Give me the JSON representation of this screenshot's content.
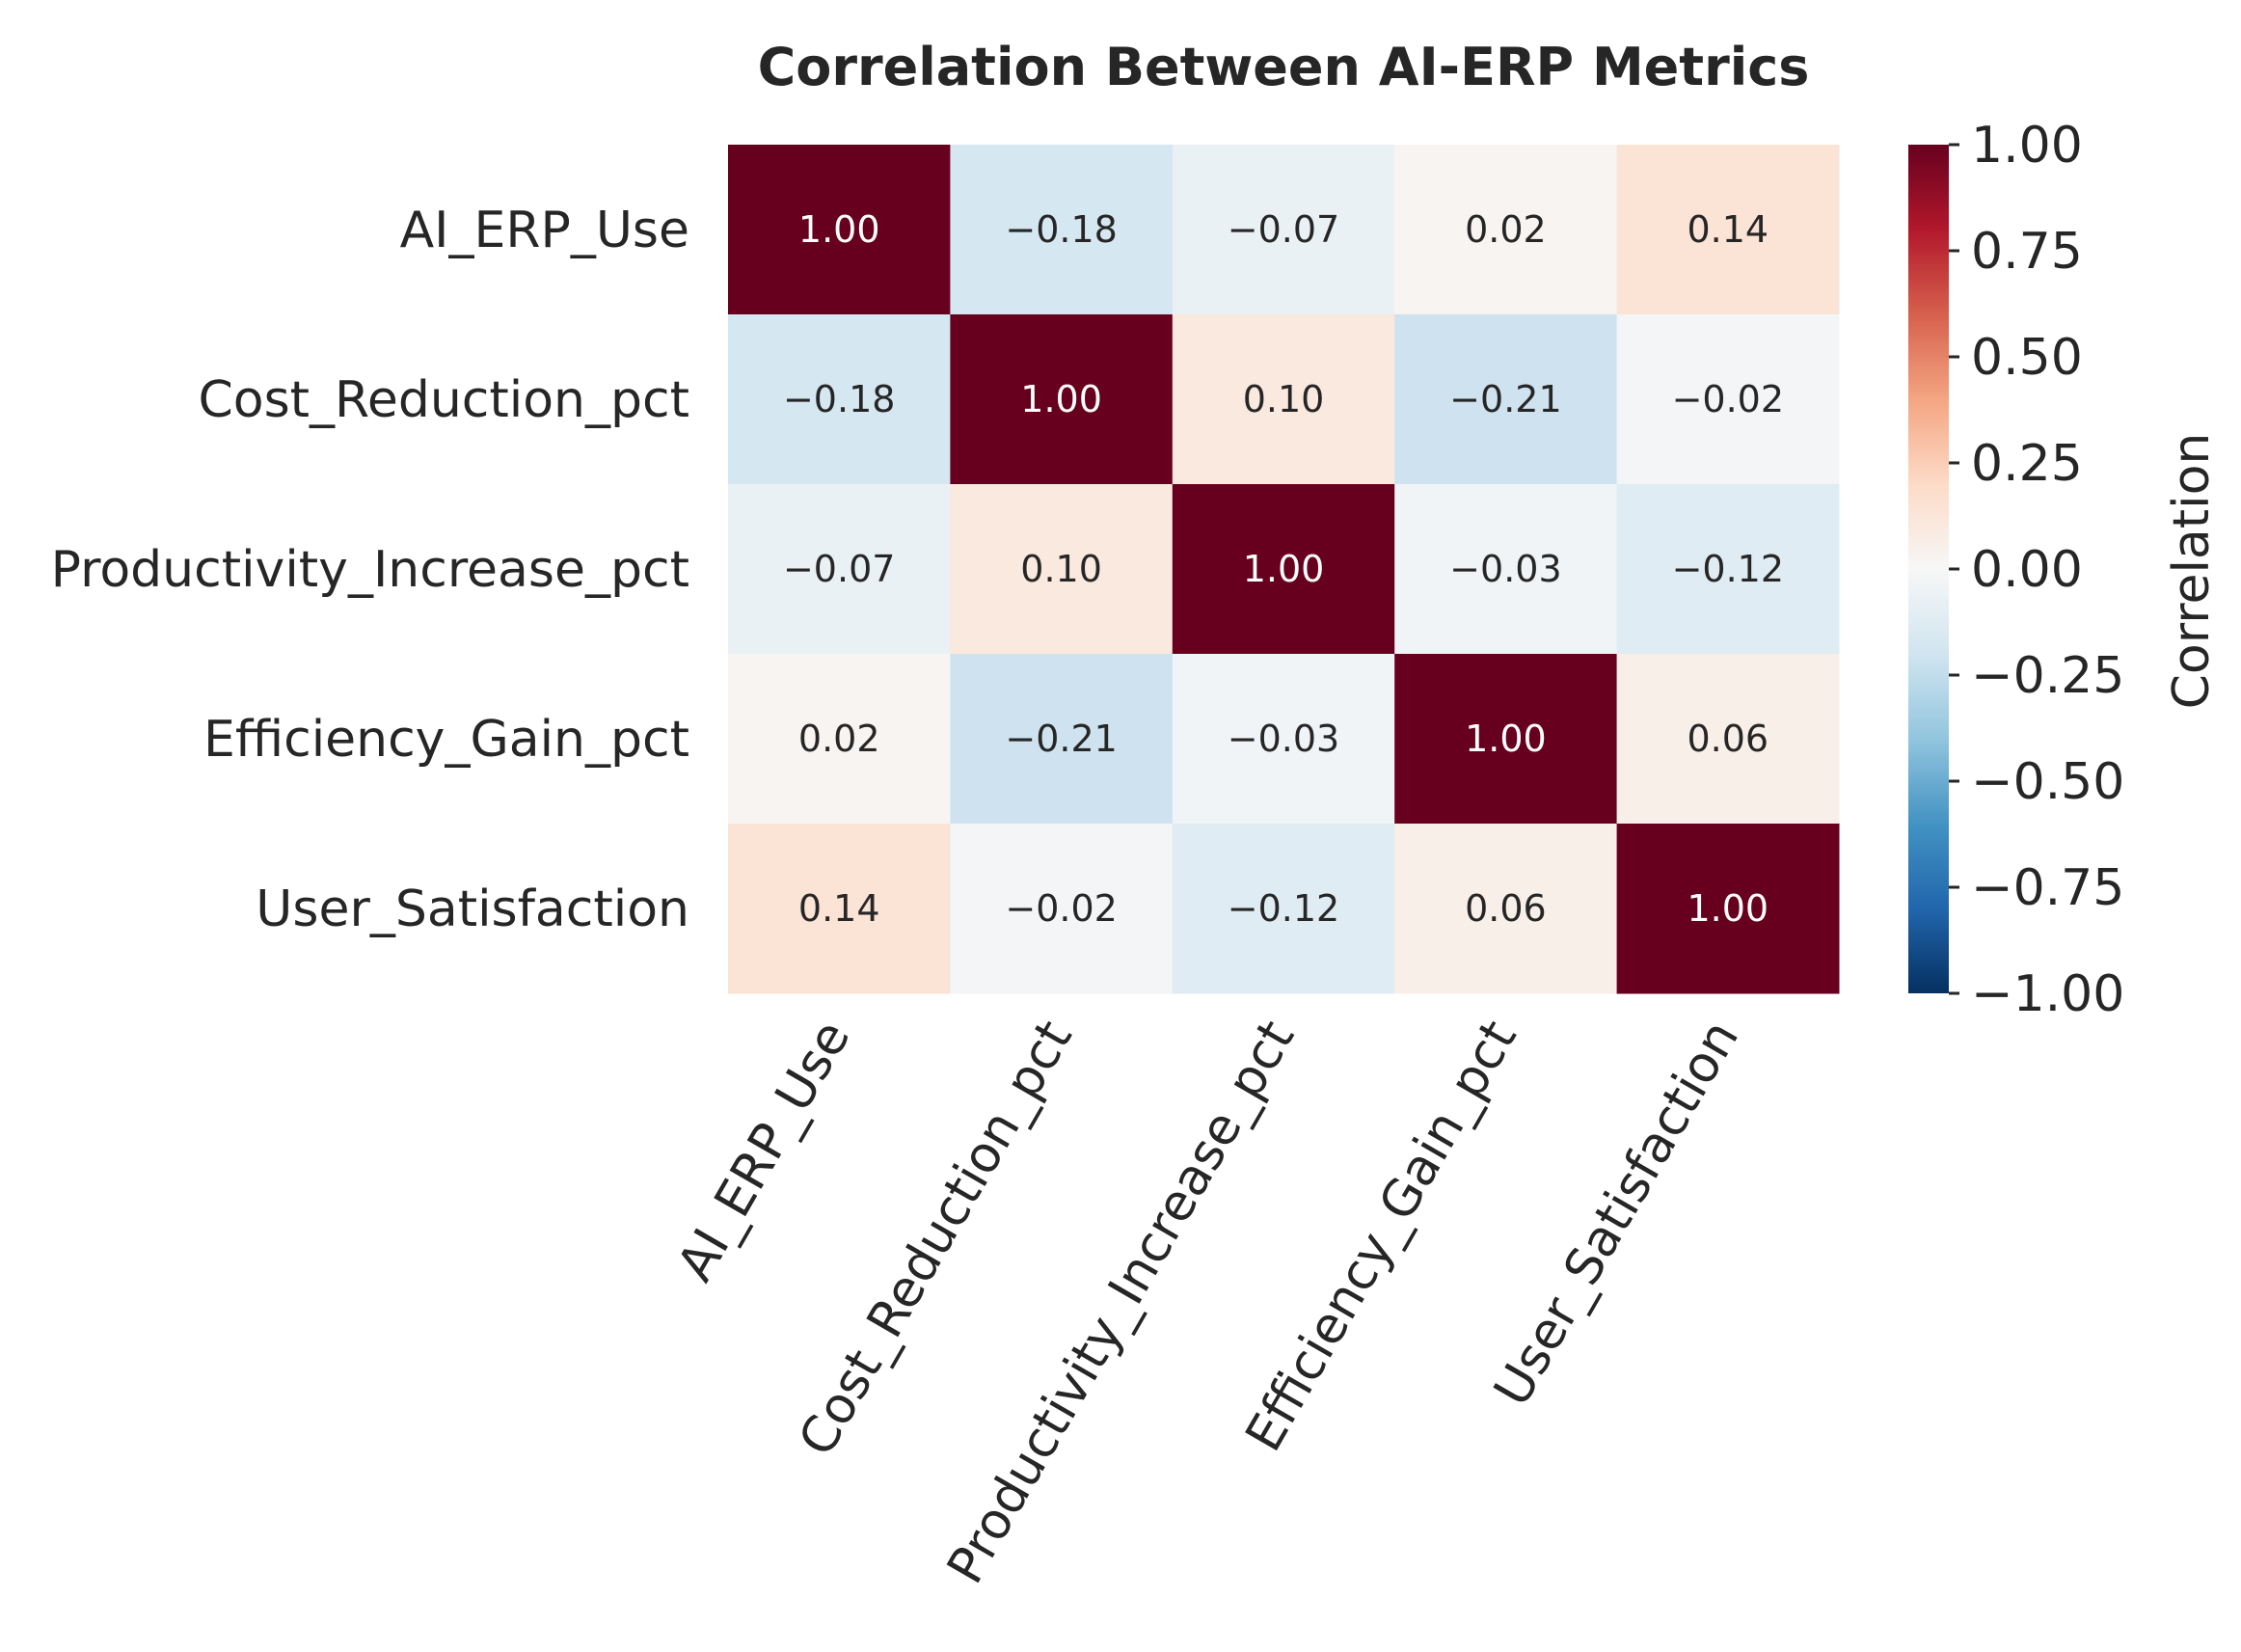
{
  "chart_data": {
    "type": "heatmap",
    "title": "Correlation Between AI-ERP Metrics",
    "row_labels": [
      "AI_ERP_Use",
      "Cost_Reduction_pct",
      "Productivity_Increase_pct",
      "Efficiency_Gain_pct",
      "User_Satisfaction"
    ],
    "col_labels": [
      "AI_ERP_Use",
      "Cost_Reduction_pct",
      "Productivity_Increase_pct",
      "Efficiency_Gain_pct",
      "User_Satisfaction"
    ],
    "values": [
      [
        1.0,
        -0.18,
        -0.07,
        0.02,
        0.14
      ],
      [
        -0.18,
        1.0,
        0.1,
        -0.21,
        -0.02
      ],
      [
        -0.07,
        0.1,
        1.0,
        -0.03,
        -0.12
      ],
      [
        0.02,
        -0.21,
        -0.03,
        1.0,
        0.06
      ],
      [
        0.14,
        -0.02,
        -0.12,
        0.06,
        1.0
      ]
    ],
    "value_range": [
      -1,
      1
    ],
    "colormap": "RdBu_r",
    "colormap_stops": [
      "#053061",
      "#2166ac",
      "#4393c3",
      "#92c5de",
      "#d1e5f0",
      "#f7f7f7",
      "#fddbc7",
      "#f4a582",
      "#d6604d",
      "#b2182b",
      "#67001f"
    ],
    "colorbar": {
      "label": "Correlation",
      "ticks": [
        1.0,
        0.75,
        0.5,
        0.25,
        0.0,
        -0.25,
        -0.5,
        -0.75,
        -1.0
      ],
      "tick_labels": [
        "1.00",
        "0.75",
        "0.50",
        "0.25",
        "0.00",
        "−0.25",
        "−0.50",
        "−0.75",
        "−1.00"
      ]
    }
  }
}
